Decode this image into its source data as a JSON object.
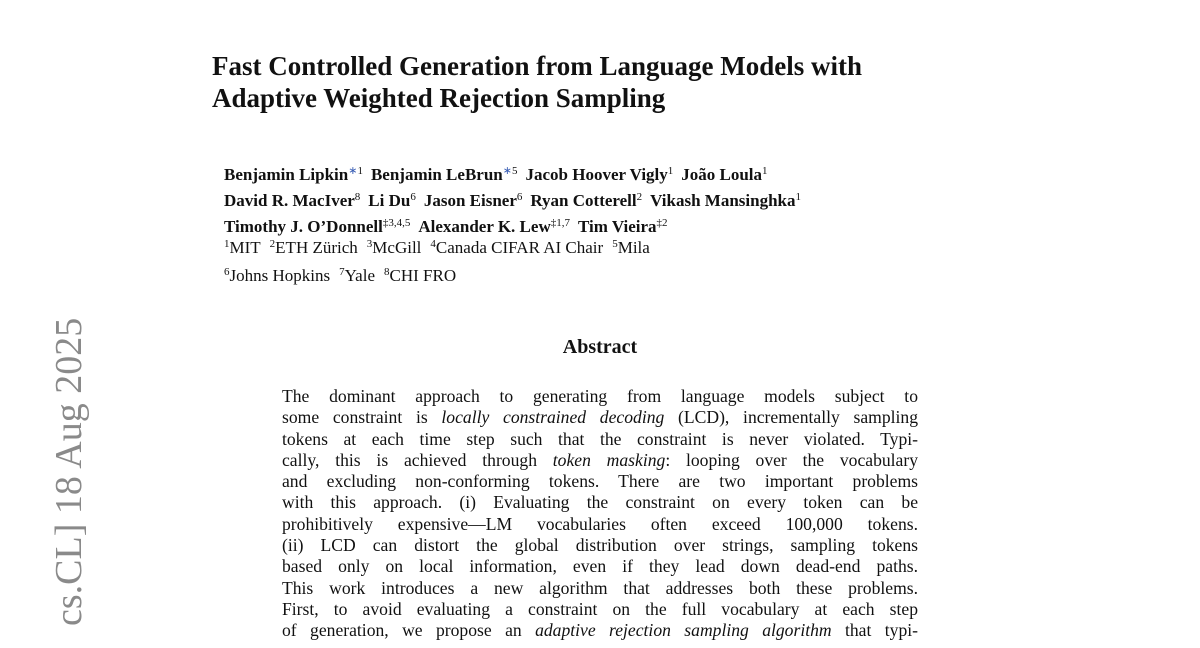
{
  "side_stamp": "cs.CL] 18 Aug 2025",
  "title": [
    "Fast Controlled Generation from Language Models with",
    "Adaptive Weighted Rejection Sampling"
  ],
  "authors": [
    [
      {
        "name": "Benjamin Lipkin",
        "mark": "∗",
        "sup": "1"
      },
      {
        "name": "Benjamin LeBrun",
        "mark": "∗",
        "sup": "5"
      },
      {
        "name": "Jacob Hoover Vigly",
        "sup": "1"
      },
      {
        "name": "João Loula",
        "sup": "1"
      }
    ],
    [
      {
        "name": "David R. MacIver",
        "sup": "8"
      },
      {
        "name": "Li Du",
        "sup": "6"
      },
      {
        "name": "Jason Eisner",
        "sup": "6"
      },
      {
        "name": "Ryan Cotterell",
        "sup": "2"
      },
      {
        "name": "Vikash Mansinghka",
        "sup": "1"
      }
    ],
    [
      {
        "name": "Timothy J. O’Donnell",
        "sup": "‡3,4,5"
      },
      {
        "name": "Alexander K. Lew",
        "sup": "‡1,7"
      },
      {
        "name": "Tim Vieira",
        "sup": "‡2"
      }
    ]
  ],
  "affiliations": [
    [
      {
        "sup": "1",
        "name": "MIT"
      },
      {
        "sup": "2",
        "name": "ETH Zürich"
      },
      {
        "sup": "3",
        "name": "McGill"
      },
      {
        "sup": "4",
        "name": "Canada CIFAR AI Chair"
      },
      {
        "sup": "5",
        "name": "Mila"
      }
    ],
    [
      {
        "sup": "6",
        "name": "Johns Hopkins"
      },
      {
        "sup": "7",
        "name": "Yale"
      },
      {
        "sup": "8",
        "name": "CHI FRO"
      }
    ]
  ],
  "abstract": {
    "heading": "Abstract",
    "lines": [
      [
        "The dominant approach to generating from language models subject to"
      ],
      [
        "some constraint is ",
        {
          "text": "locally constrained decoding",
          "italic": true
        },
        " (LCD), incrementally sampling"
      ],
      [
        "tokens at each time step such that the constraint is never violated. Typi-"
      ],
      [
        "cally, this is achieved through ",
        {
          "text": "token masking",
          "italic": true
        },
        ": looping over the vocabulary"
      ],
      [
        "and excluding non-conforming tokens. There are two important problems"
      ],
      [
        "with this approach. (i) Evaluating the constraint on every token can be"
      ],
      [
        "prohibitively expensive—LM vocabularies often exceed 100,000 tokens."
      ],
      [
        "(ii) LCD can distort the global distribution over strings, sampling tokens"
      ],
      [
        "based only on local information, even if they lead down dead-end paths."
      ],
      [
        "This work introduces a new algorithm that addresses both these problems."
      ],
      [
        "First, to avoid evaluating a constraint on the full vocabulary at each step"
      ],
      [
        "of generation, we propose an ",
        {
          "text": "adaptive rejection sampling algorithm",
          "italic": true
        },
        " that typi-"
      ]
    ]
  }
}
